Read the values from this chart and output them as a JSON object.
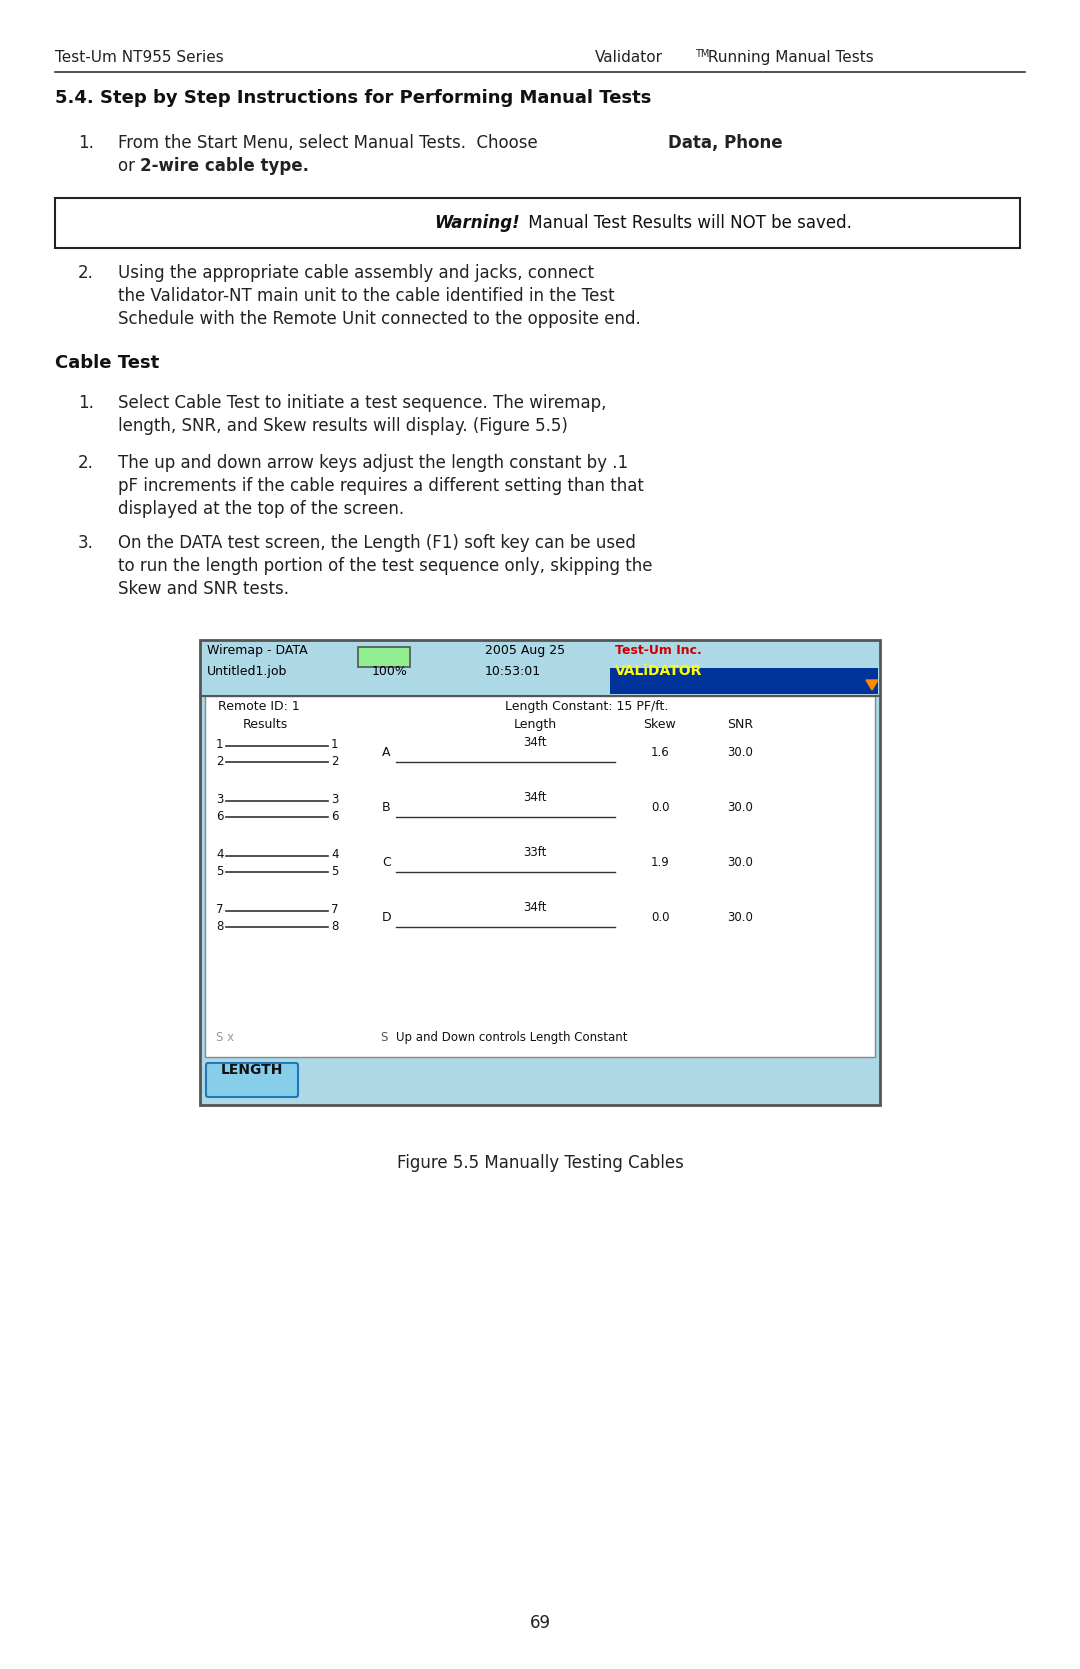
{
  "page_bg": "#ffffff",
  "header_left": "Test-Um NT955 Series",
  "header_right": " Running Manual Tests",
  "header_tm": "TM",
  "section_title": "5.4. Step by Step Instructions for Performing Manual Tests",
  "warning_bold": "Warning!",
  "warning_normal": " Manual Test Results will NOT be saved.",
  "step2": [
    "Using the appropriate cable assembly and jacks, connect",
    "the Validator-NT main unit to the cable identified in the Test",
    "Schedule with the Remote Unit connected to the opposite end."
  ],
  "cable_test_title": "Cable Test",
  "cable_step1": [
    "Select Cable Test to initiate a test sequence. The wiremap,",
    "length, SNR, and Skew results will display. (Figure 5.5)"
  ],
  "cable_step2": [
    "The up and down arrow keys adjust the length constant by .1",
    "pF increments if the cable requires a different setting than that",
    "displayed at the top of the screen."
  ],
  "cable_step3": [
    "On the DATA test screen, the Length (F1) soft key can be used",
    "to run the length portion of the test sequence only, skipping the",
    "Skew and SNR tests."
  ],
  "figure_caption": "Figure 5.5 Manually Testing Cables",
  "page_number": "69",
  "screen": {
    "bg": "#add8e6",
    "inner_bg": "#ffffff",
    "header_left1": "Wiremap - DATA",
    "header_left2": "Untitled1.job",
    "header_center1": "2005 Aug 25",
    "header_center2": "10:53:01",
    "header_pct": "100%",
    "header_right1": "Test-Um Inc.",
    "header_right2": "VALiDATOR",
    "battery_color": "#90ee90",
    "remote_id": "Remote ID: 1",
    "length_constant": "Length Constant: 15 PF/ft.",
    "col_results": "Results",
    "col_length": "Length",
    "col_skew": "Skew",
    "col_snr": "SNR",
    "rows": [
      {
        "wires": [
          "1",
          "2"
        ],
        "remote": [
          "1",
          "2"
        ],
        "pair": "A",
        "length": "34ft",
        "skew": "1.6",
        "snr": "30.0"
      },
      {
        "wires": [
          "3",
          "6"
        ],
        "remote": [
          "3",
          "6"
        ],
        "pair": "B",
        "length": "34ft",
        "skew": "0.0",
        "snr": "30.0"
      },
      {
        "wires": [
          "4",
          "5"
        ],
        "remote": [
          "4",
          "5"
        ],
        "pair": "C",
        "length": "33ft",
        "skew": "1.9",
        "snr": "30.0"
      },
      {
        "wires": [
          "7",
          "8"
        ],
        "remote": [
          "7",
          "8"
        ],
        "pair": "D",
        "length": "34ft",
        "skew": "0.0",
        "snr": "30.0"
      }
    ],
    "footer_left": "S x",
    "footer_right": "S",
    "footer_msg": "Up and Down controls Length Constant",
    "length_btn": "LENGTH",
    "length_btn_bg": "#87ceeb"
  }
}
